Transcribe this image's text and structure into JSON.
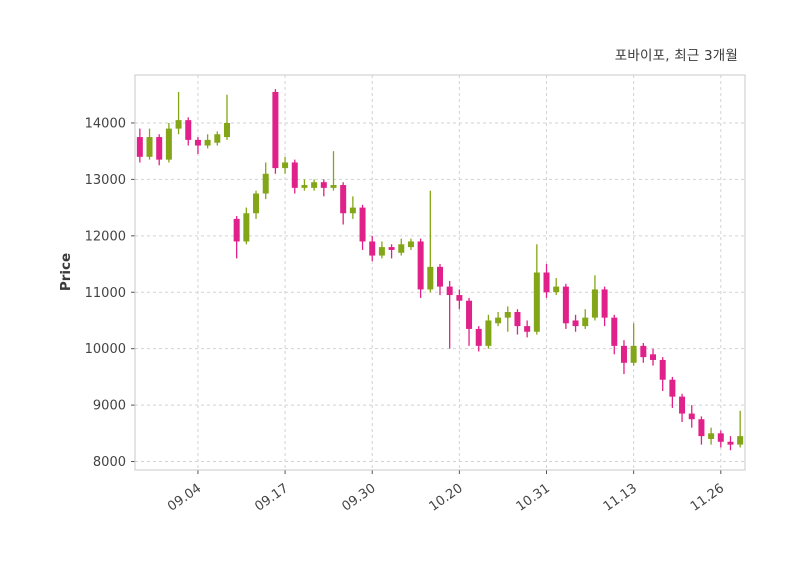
{
  "header": {
    "title": "포바이포, 최근 3개월"
  },
  "chart_data": {
    "type": "candlestick",
    "title": "포바이포, 최근 3개월",
    "xlabel": "",
    "ylabel": "Price",
    "ylim": [
      7850,
      14850
    ],
    "yticks": [
      8000,
      9000,
      10000,
      11000,
      12000,
      13000,
      14000
    ],
    "grid": true,
    "legend": "none",
    "up_color": "#82a617",
    "down_color": "#e0218a",
    "xticks": [
      {
        "index": 6,
        "label": "09.04"
      },
      {
        "index": 15,
        "label": "09.17"
      },
      {
        "index": 24,
        "label": "09.30"
      },
      {
        "index": 33,
        "label": "10.20"
      },
      {
        "index": 42,
        "label": "10.31"
      },
      {
        "index": 51,
        "label": "11.13"
      },
      {
        "index": 60,
        "label": "11.26"
      }
    ],
    "candles_format": [
      "open",
      "high",
      "low",
      "close"
    ],
    "candles": [
      [
        13750,
        13900,
        13300,
        13400
      ],
      [
        13400,
        13900,
        13350,
        13750
      ],
      [
        13750,
        13800,
        13250,
        13350
      ],
      [
        13350,
        14000,
        13300,
        13900
      ],
      [
        13900,
        14550,
        13800,
        14050
      ],
      [
        14050,
        14100,
        13600,
        13700
      ],
      [
        13700,
        13750,
        13450,
        13600
      ],
      [
        13600,
        13800,
        13550,
        13700
      ],
      [
        13650,
        13850,
        13600,
        13800
      ],
      [
        13750,
        14500,
        13700,
        14000
      ],
      [
        12300,
        12350,
        11600,
        11900
      ],
      [
        11900,
        12500,
        11850,
        12400
      ],
      [
        12400,
        12800,
        12300,
        12750
      ],
      [
        12750,
        13300,
        12650,
        13100
      ],
      [
        14550,
        14600,
        13100,
        13200
      ],
      [
        13200,
        13400,
        13100,
        13300
      ],
      [
        13300,
        13350,
        12750,
        12850
      ],
      [
        12850,
        13000,
        12800,
        12900
      ],
      [
        12850,
        13000,
        12800,
        12950
      ],
      [
        12950,
        13000,
        12700,
        12850
      ],
      [
        12850,
        13500,
        12800,
        12900
      ],
      [
        12900,
        12950,
        12200,
        12400
      ],
      [
        12400,
        12700,
        12300,
        12500
      ],
      [
        12500,
        12550,
        11750,
        11900
      ],
      [
        11900,
        12000,
        11550,
        11650
      ],
      [
        11650,
        11900,
        11600,
        11800
      ],
      [
        11800,
        11850,
        11600,
        11750
      ],
      [
        11700,
        11950,
        11650,
        11850
      ],
      [
        11800,
        11950,
        11750,
        11900
      ],
      [
        11900,
        11950,
        10900,
        11050
      ],
      [
        11050,
        12800,
        11000,
        11450
      ],
      [
        11450,
        11500,
        10950,
        11100
      ],
      [
        11100,
        11200,
        10000,
        10950
      ],
      [
        10950,
        11050,
        10700,
        10850
      ],
      [
        10850,
        10900,
        10050,
        10350
      ],
      [
        10350,
        10400,
        9950,
        10050
      ],
      [
        10050,
        10600,
        10000,
        10500
      ],
      [
        10450,
        10650,
        10400,
        10550
      ],
      [
        10550,
        10750,
        10300,
        10650
      ],
      [
        10650,
        10700,
        10250,
        10400
      ],
      [
        10400,
        10500,
        10200,
        10300
      ],
      [
        10300,
        11850,
        10250,
        11350
      ],
      [
        11350,
        11500,
        10900,
        11000
      ],
      [
        11000,
        11250,
        10950,
        11100
      ],
      [
        11100,
        11150,
        10350,
        10450
      ],
      [
        10500,
        10600,
        10300,
        10400
      ],
      [
        10400,
        10700,
        10350,
        10550
      ],
      [
        10550,
        11300,
        10500,
        11050
      ],
      [
        11050,
        11100,
        10400,
        10550
      ],
      [
        10550,
        10600,
        9900,
        10050
      ],
      [
        10050,
        10150,
        9550,
        9750
      ],
      [
        9750,
        10450,
        9700,
        10050
      ],
      [
        10050,
        10100,
        9750,
        9850
      ],
      [
        9900,
        10000,
        9700,
        9800
      ],
      [
        9800,
        9850,
        9250,
        9450
      ],
      [
        9450,
        9500,
        8950,
        9150
      ],
      [
        9150,
        9200,
        8700,
        8850
      ],
      [
        8850,
        9000,
        8600,
        8750
      ],
      [
        8750,
        8800,
        8300,
        8450
      ],
      [
        8400,
        8600,
        8300,
        8500
      ],
      [
        8500,
        8550,
        8250,
        8350
      ],
      [
        8350,
        8450,
        8200,
        8300
      ],
      [
        8300,
        8900,
        8250,
        8450
      ]
    ]
  }
}
